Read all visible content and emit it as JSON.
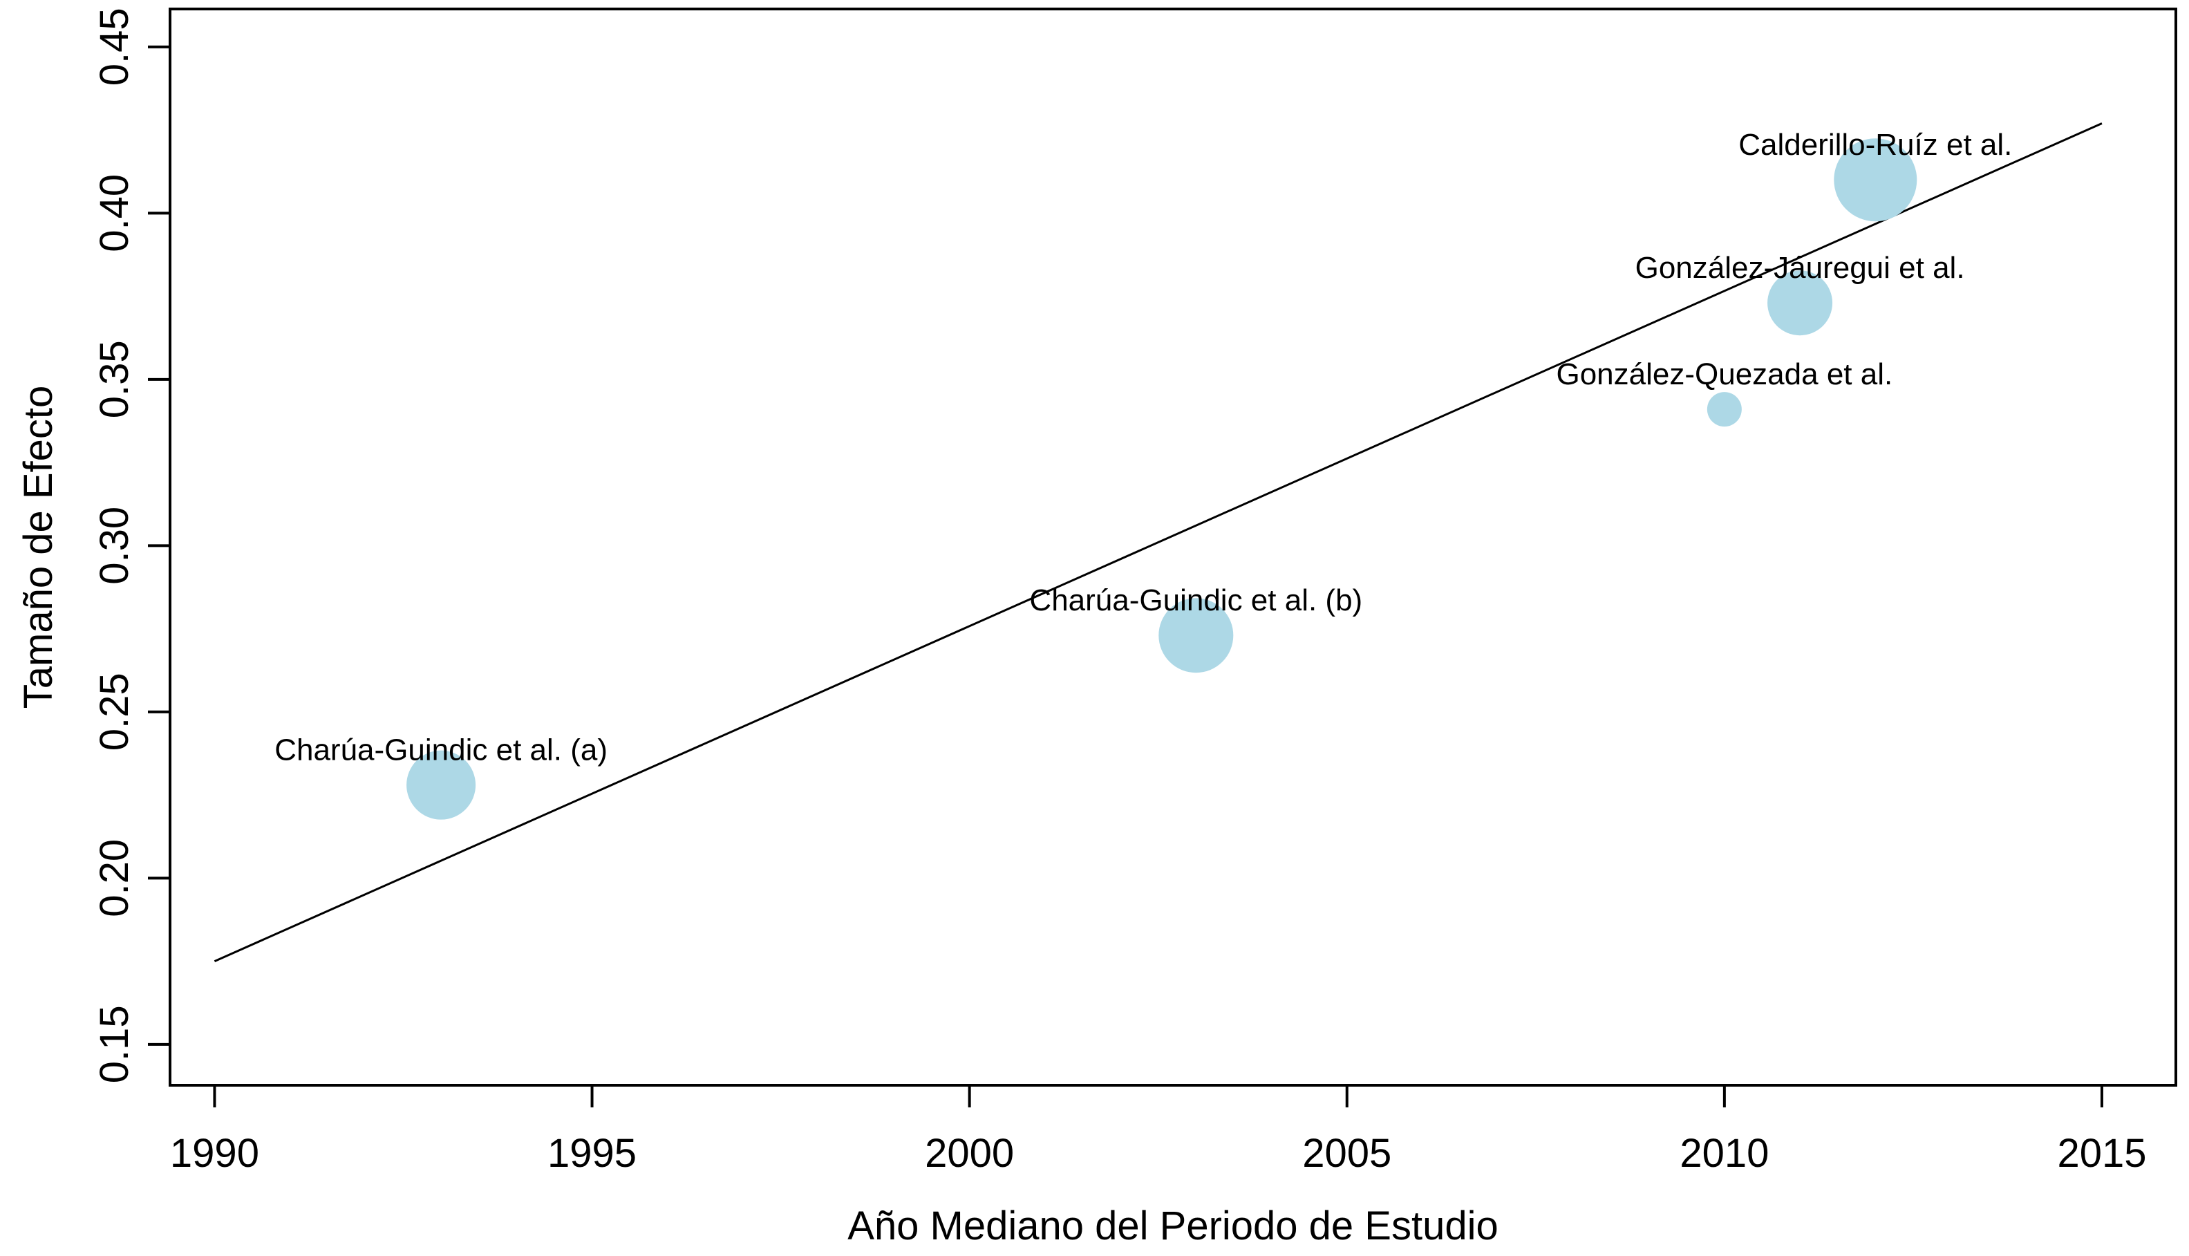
{
  "chart_data": {
    "type": "scatter",
    "title": "",
    "xlabel": "Año Mediano del Periodo de Estudio",
    "ylabel": "Tamaño de Efecto",
    "xlim": [
      1989.41,
      2015.98
    ],
    "ylim": [
      0.1377,
      0.4614
    ],
    "x_ticks": [
      1990,
      1995,
      2000,
      2005,
      2010,
      2015
    ],
    "x_tick_labels": [
      "1990",
      "1995",
      "2000",
      "2005",
      "2010",
      "2015"
    ],
    "y_ticks": [
      0.15,
      0.2,
      0.25,
      0.3,
      0.35,
      0.4,
      0.45
    ],
    "y_tick_labels": [
      "0.15",
      "0.20",
      "0.25",
      "0.30",
      "0.35",
      "0.40",
      "0.45"
    ],
    "grid": false,
    "legend": null,
    "bubble_color": "#ADD8E6",
    "line_color": "#000000",
    "points": [
      {
        "label": "Charúa-Guindic et al. (a)",
        "x": 1993,
        "y": 0.228,
        "radius_px": 50
      },
      {
        "label": "Charúa-Guindic et al. (b)",
        "x": 2003,
        "y": 0.273,
        "radius_px": 54
      },
      {
        "label": "González-Quezada et al.",
        "x": 2010,
        "y": 0.341,
        "radius_px": 25
      },
      {
        "label": "González-Jáuregui et al.",
        "x": 2011,
        "y": 0.373,
        "radius_px": 47
      },
      {
        "label": "Calderillo-Ruíz et al.",
        "x": 2012,
        "y": 0.41,
        "radius_px": 60
      }
    ],
    "trend_line": {
      "x1": 1990,
      "y1": 0.175,
      "x2": 2015,
      "y2": 0.427
    }
  }
}
